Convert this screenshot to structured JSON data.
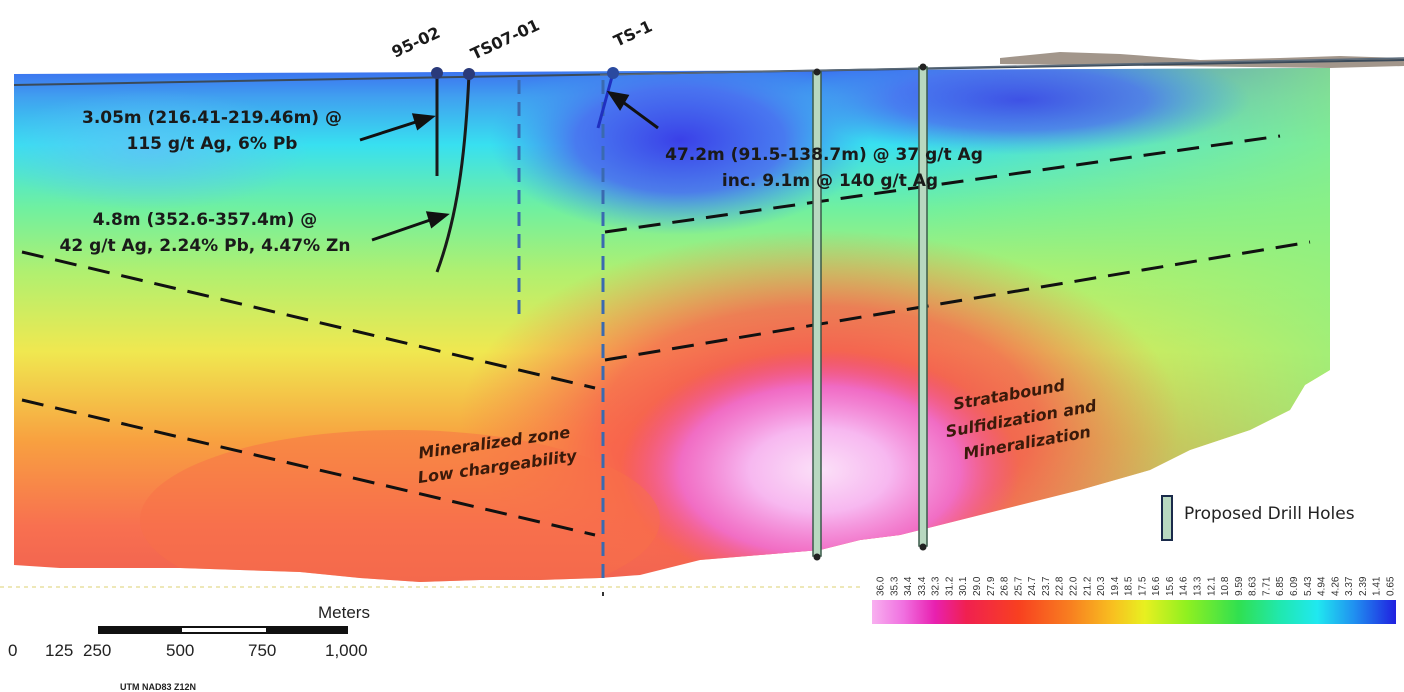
{
  "drill_holes": [
    {
      "name": "95-02"
    },
    {
      "name": "TS07-01"
    },
    {
      "name": "TS-1"
    }
  ],
  "annotations": {
    "hole_95_02": [
      "3.05m (216.41-219.46m) @",
      "115 g/t Ag, 6% Pb"
    ],
    "hole_ts07_01": [
      "4.8m (352.6-357.4m) @",
      "42 g/t Ag, 2.24% Pb, 4.47% Zn"
    ],
    "hole_ts_1": [
      "47.2m (91.5-138.7m) @ 37 g/t Ag",
      "inc. 9.1m @ 140 g/t Ag"
    ]
  },
  "zone_labels": {
    "mineralized": [
      "Mineralized zone",
      "Low chargeability"
    ],
    "stratabound": [
      "Stratabound",
      "Sulfidization and",
      "Mineralization"
    ]
  },
  "legend": {
    "proposed_drill_holes": "Proposed Drill Holes"
  },
  "scale_bar": {
    "title": "Meters",
    "ticks": [
      "0",
      "125",
      "250",
      "500",
      "750",
      "1,000"
    ],
    "projection": "UTM NAD83 Z12N"
  },
  "colorbar": {
    "labels": [
      "36.0",
      "35.3",
      "34.4",
      "33.4",
      "32.3",
      "31.2",
      "30.1",
      "29.0",
      "27.9",
      "26.8",
      "25.7",
      "24.7",
      "23.7",
      "22.8",
      "22.0",
      "21.2",
      "20.3",
      "19.4",
      "18.5",
      "17.5",
      "16.6",
      "15.6",
      "14.6",
      "13.3",
      "12.1",
      "10.8",
      "9.59",
      "8.63",
      "7.71",
      "6.85",
      "6.09",
      "5.43",
      "4.94",
      "4.26",
      "3.37",
      "2.39",
      "1.41",
      "0.65"
    ]
  },
  "colors": {
    "proposed_hole_fill": "#b8d8c0",
    "existing_hole": "#1a1a1a",
    "fault_line": "#111111",
    "blue_dash": "#3a6ab0"
  }
}
